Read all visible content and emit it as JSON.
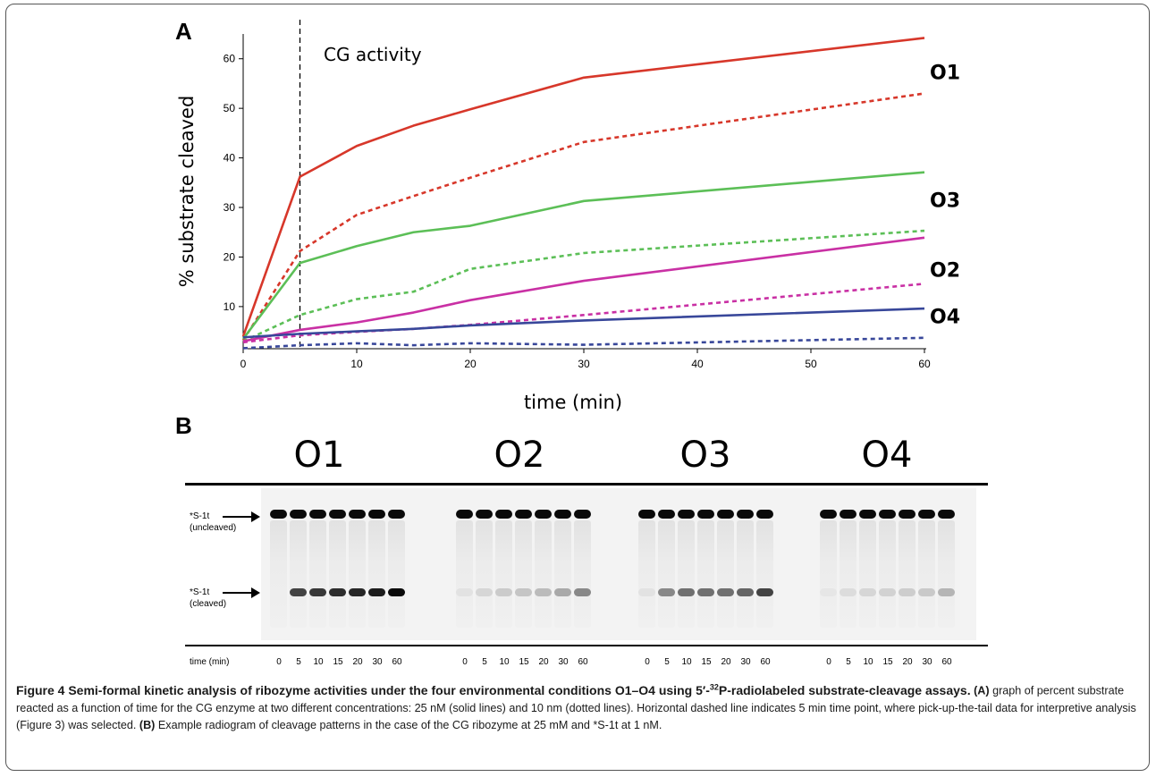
{
  "figure": {
    "panel_a_letter": "A",
    "panel_b_letter": "B"
  },
  "chart_data": {
    "type": "line",
    "title": "CG activity",
    "xlabel": "time (min)",
    "ylabel": "% substrate cleaved",
    "xlim": [
      0,
      60
    ],
    "ylim": [
      1.5,
      65
    ],
    "xticks": [
      0,
      10,
      20,
      30,
      40,
      50,
      60
    ],
    "yticks": [
      10,
      20,
      30,
      40,
      50,
      60
    ],
    "annotation_vline_x": 5,
    "series": [
      {
        "group": "O1",
        "style": "solid",
        "color": "#d7372a",
        "x": [
          0,
          5,
          10,
          15,
          20,
          30,
          60
        ],
        "y": [
          4,
          36.2,
          42.4,
          46.5,
          49.8,
          56.2,
          64.2
        ]
      },
      {
        "group": "O1",
        "style": "dotted",
        "color": "#d7372a",
        "x": [
          0,
          5,
          10,
          15,
          20,
          30,
          60
        ],
        "y": [
          3.2,
          21.2,
          28.5,
          32.3,
          36,
          43.2,
          53
        ]
      },
      {
        "group": "O3",
        "style": "solid",
        "color": "#5cbf57",
        "x": [
          0,
          5,
          10,
          15,
          20,
          30,
          60
        ],
        "y": [
          3.5,
          18.8,
          22.2,
          25,
          26.3,
          31.3,
          37.1
        ]
      },
      {
        "group": "O3",
        "style": "dotted",
        "color": "#5cbf57",
        "x": [
          0,
          5,
          10,
          15,
          20,
          30,
          60
        ],
        "y": [
          3,
          8.3,
          11.5,
          13,
          17.6,
          20.8,
          25.3
        ]
      },
      {
        "group": "O2",
        "style": "solid",
        "color": "#c930a4",
        "x": [
          0,
          5,
          10,
          15,
          20,
          30,
          60
        ],
        "y": [
          3,
          5.3,
          6.8,
          8.8,
          11.3,
          15.2,
          23.9
        ]
      },
      {
        "group": "O2",
        "style": "dotted",
        "color": "#c930a4",
        "x": [
          0,
          5,
          10,
          15,
          20,
          30,
          60
        ],
        "y": [
          2.8,
          4.2,
          4.9,
          5.5,
          6.3,
          8.3,
          14.6
        ]
      },
      {
        "group": "O4",
        "style": "solid",
        "color": "#38479a",
        "x": [
          0,
          5,
          10,
          15,
          20,
          30,
          60
        ],
        "y": [
          3.8,
          4.5,
          5,
          5.5,
          6.2,
          7.2,
          9.6
        ]
      },
      {
        "group": "O4",
        "style": "dotted",
        "color": "#38479a",
        "x": [
          0,
          5,
          10,
          15,
          20,
          30,
          60
        ],
        "y": [
          1.6,
          2.2,
          2.6,
          2.2,
          2.6,
          2.3,
          3.7
        ]
      }
    ],
    "group_labels": [
      {
        "text": "O1",
        "y": 57.3
      },
      {
        "text": "O3",
        "y": 31.5
      },
      {
        "text": "O2",
        "y": 17.5
      },
      {
        "text": "O4",
        "y": 8.1
      }
    ]
  },
  "gel": {
    "conditions": [
      "O1",
      "O2",
      "O3",
      "O4"
    ],
    "uncleaved_label": [
      "*S-1t",
      "(uncleaved)"
    ],
    "cleaved_label": [
      "*S-1t",
      "(cleaved)"
    ],
    "time_label": "time (min)",
    "time_points": [
      "0",
      "5",
      "10",
      "15",
      "20",
      "30",
      "60"
    ],
    "cleaved_intensity": {
      "O1": [
        0,
        0.75,
        0.8,
        0.85,
        0.88,
        0.92,
        1.0
      ],
      "O2": [
        0.05,
        0.1,
        0.15,
        0.18,
        0.22,
        0.3,
        0.45
      ],
      "O3": [
        0.05,
        0.45,
        0.55,
        0.55,
        0.55,
        0.6,
        0.75
      ],
      "O4": [
        0.03,
        0.08,
        0.1,
        0.12,
        0.14,
        0.16,
        0.25
      ]
    },
    "colors": {
      "band": "#0a0a0a",
      "background": "#f3f3f3"
    }
  },
  "caption": {
    "title": "Figure 4 Semi-formal kinetic analysis of ribozyme activities under the four environmental conditions O1–O4 using 5′-",
    "title_sup": "32",
    "title_end": "P-radiolabeled substrate-cleavage assays.",
    "a_label": "(A)",
    "a_text": " graph of percent substrate reacted as a function of time for the CG enzyme at two different concentrations: 25 nM (solid lines) and 10 nm (dotted lines). Horizontal dashed line indicates 5 min time point, where pick-up-the-tail data for interpretive analysis (Figure 3) was selected. ",
    "b_label": "(B)",
    "b_text": " Example radiogram of cleavage patterns in the case of the CG ribozyme at 25 mM and *S-1t at 1 nM."
  }
}
